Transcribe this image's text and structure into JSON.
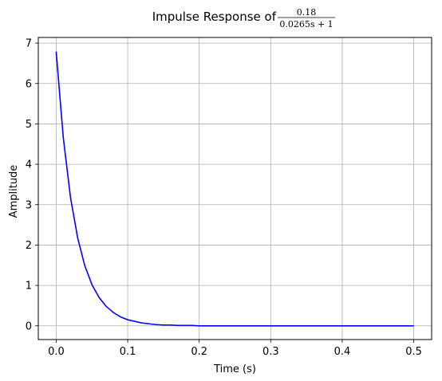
{
  "chart_data": {
    "type": "line",
    "title": {
      "prefix": "Impulse Response of",
      "numerator": "0.18",
      "denominator": "0.0265s + 1"
    },
    "xlabel": "Time (s)",
    "ylabel": "Amplitude",
    "xlim": [
      -0.025,
      0.525
    ],
    "ylim": [
      -0.34,
      7.14
    ],
    "xticks": [
      0.0,
      0.1,
      0.2,
      0.3,
      0.4,
      0.5
    ],
    "xtick_labels": [
      "0.0",
      "0.1",
      "0.2",
      "0.3",
      "0.4",
      "0.5"
    ],
    "yticks": [
      0,
      1,
      2,
      3,
      4,
      5,
      6,
      7
    ],
    "ytick_labels": [
      "0",
      "1",
      "2",
      "3",
      "4",
      "5",
      "6",
      "7"
    ],
    "grid": true,
    "series": [
      {
        "color": "#0000ff",
        "x": [
          0.0,
          0.01,
          0.02,
          0.03,
          0.04,
          0.05,
          0.06,
          0.07,
          0.08,
          0.09,
          0.1,
          0.11,
          0.12,
          0.13,
          0.14,
          0.15,
          0.16,
          0.17,
          0.18,
          0.19,
          0.2,
          0.25,
          0.3,
          0.35,
          0.4,
          0.45,
          0.5
        ],
        "y": [
          6.79,
          4.65,
          3.18,
          2.18,
          1.49,
          1.02,
          0.7,
          0.48,
          0.33,
          0.22,
          0.15,
          0.11,
          0.07,
          0.05,
          0.03,
          0.02,
          0.02,
          0.01,
          0.01,
          0.01,
          0.0,
          0.0,
          0.0,
          0.0,
          0.0,
          0.0,
          0.0
        ]
      }
    ]
  }
}
